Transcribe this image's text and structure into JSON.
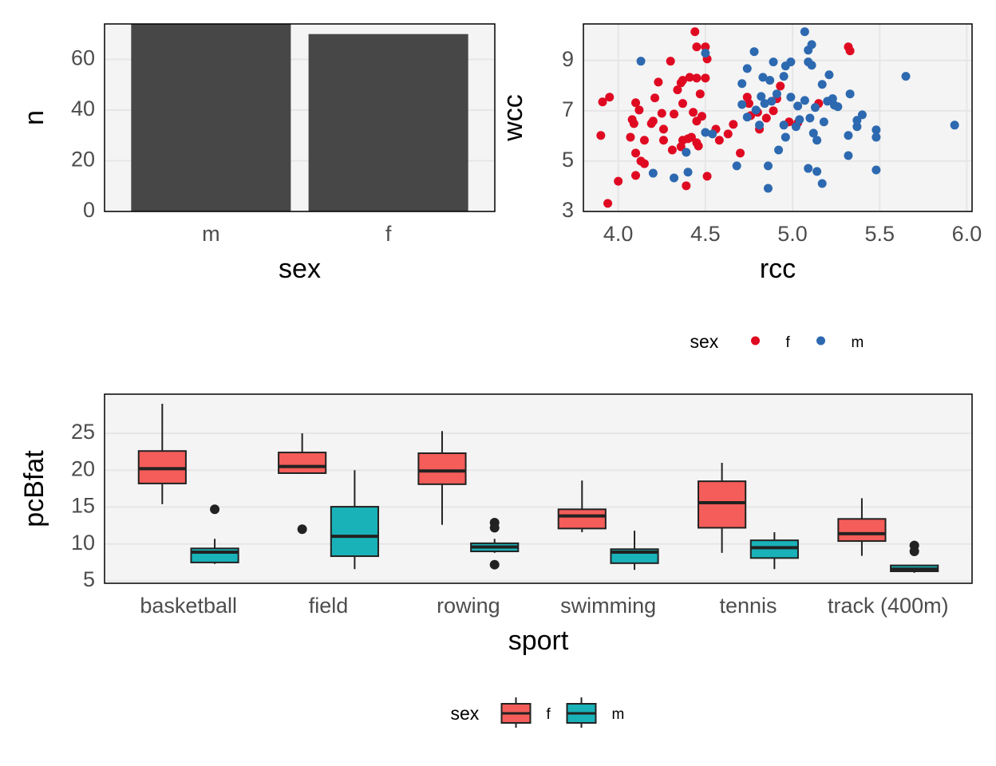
{
  "chart_data": [
    {
      "type": "bar",
      "x_label": "sex",
      "y_label": "n",
      "categories": [
        "m",
        "f"
      ],
      "values": [
        74,
        70
      ],
      "color": "#474747",
      "ylim": [
        0,
        74
      ],
      "yticks": [
        0,
        20,
        40,
        60
      ],
      "grid": true
    },
    {
      "type": "scatter",
      "x_label": "rcc",
      "y_label": "wcc",
      "legend_title": "sex",
      "legend": "bottom",
      "grid": true,
      "xlim": [
        3.8,
        6.03
      ],
      "xticks": [
        {
          "value": 4,
          "label": "4.0"
        },
        {
          "value": 4.5,
          "label": "4.5"
        },
        {
          "value": 5,
          "label": "5.0"
        },
        {
          "value": 5.5,
          "label": "5.5"
        },
        {
          "value": 6,
          "label": "6.0"
        }
      ],
      "ylim": [
        3,
        10.45
      ],
      "yticks": [
        3,
        5,
        7,
        9
      ],
      "series": [
        {
          "name": "f",
          "color": "#df0a22",
          "x": [
            3.9,
            3.91,
            3.95,
            3.94,
            4.0,
            4.07,
            4.08,
            4.09,
            4.1,
            4.1,
            4.12,
            4.13,
            4.15,
            4.1,
            4.15,
            4.19,
            4.2,
            4.21,
            4.23,
            4.25,
            4.26,
            4.26,
            4.3,
            4.31,
            4.32,
            4.34,
            4.36,
            4.36,
            4.37,
            4.37,
            4.37,
            4.39,
            4.4,
            4.41,
            4.42,
            4.43,
            4.44,
            4.45,
            4.45,
            4.45,
            4.45,
            4.46,
            4.47,
            4.48,
            4.5,
            4.5,
            4.51,
            4.51,
            4.56,
            4.58,
            4.63,
            4.66,
            4.7,
            4.74,
            4.75,
            4.76,
            4.8,
            4.81,
            4.85,
            4.89,
            4.91,
            4.93,
            4.98,
            5.03,
            5.15,
            5.32,
            5.33
          ],
          "y": [
            6.02,
            7.35,
            7.54,
            3.32,
            4.2,
            5.95,
            6.65,
            6.49,
            7.32,
            5.32,
            7.03,
            5.0,
            5.83,
            4.43,
            4.9,
            6.49,
            6.59,
            7.51,
            8.14,
            6.9,
            6.27,
            5.83,
            8.97,
            5.44,
            6.87,
            7.83,
            5.57,
            8.11,
            8.21,
            5.83,
            7.29,
            4.02,
            5.89,
            8.33,
            5.95,
            6.94,
            10.14,
            8.3,
            9.54,
            6.59,
            5.73,
            5.6,
            7.67,
            6.78,
            9.54,
            8.3,
            9.06,
            4.4,
            6.27,
            5.83,
            6.08,
            6.46,
            5.32,
            7.54,
            7.29,
            6.81,
            6.94,
            6.27,
            6.71,
            7.0,
            7.48,
            7.98,
            6.56,
            6.52,
            7.29,
            9.54,
            9.38
          ]
        },
        {
          "name": "m",
          "color": "#2d69b0",
          "x": [
            4.13,
            4.2,
            4.32,
            4.39,
            4.4,
            4.5,
            4.5,
            4.54,
            4.68,
            4.71,
            4.71,
            4.74,
            4.74,
            4.78,
            4.79,
            4.81,
            4.82,
            4.83,
            4.84,
            4.86,
            4.86,
            4.87,
            4.88,
            4.89,
            4.91,
            4.92,
            4.95,
            4.95,
            4.96,
            4.96,
            4.99,
            4.99,
            5.02,
            5.03,
            5.04,
            5.07,
            5.07,
            5.09,
            5.09,
            5.09,
            5.1,
            5.11,
            5.11,
            5.12,
            5.13,
            5.14,
            5.14,
            5.17,
            5.17,
            5.18,
            5.2,
            5.21,
            5.23,
            5.24,
            5.26,
            5.32,
            5.32,
            5.33,
            5.37,
            5.37,
            5.4,
            5.48,
            5.48,
            5.48,
            5.65,
            5.93
          ],
          "y": [
            8.97,
            4.52,
            4.33,
            5.35,
            4.56,
            9.29,
            6.14,
            6.08,
            4.81,
            8.08,
            7.25,
            6.75,
            8.68,
            9.35,
            7.03,
            6.43,
            7.57,
            8.33,
            7.29,
            4.81,
            3.92,
            8.21,
            7.38,
            8.94,
            7.67,
            5.44,
            8.37,
            6.43,
            8.78,
            5.95,
            8.94,
            7.54,
            6.37,
            7.19,
            6.65,
            7.41,
            10.14,
            9.41,
            4.71,
            8.94,
            6.71,
            9.63,
            8.81,
            6.11,
            7.13,
            4.59,
            5.83,
            4.11,
            8.05,
            6.56,
            7.38,
            8.43,
            7.48,
            7.22,
            7.16,
            6.02,
            5.22,
            7.67,
            6.37,
            6.62,
            6.84,
            6.24,
            5.95,
            4.65,
            8.37,
            6.43
          ]
        }
      ]
    },
    {
      "type": "boxplot",
      "x_label": "sport",
      "y_label": "pcBfat",
      "legend_title": "sex",
      "legend": "bottom",
      "grid": true,
      "categories": [
        "basketball",
        "field",
        "rowing",
        "swimming",
        "tennis",
        "track (400m)"
      ],
      "ylim": [
        4.68,
        30.3
      ],
      "yticks": [
        5,
        10,
        15,
        20,
        25
      ],
      "series": [
        {
          "name": "f",
          "color": "#f45d59",
          "boxes": [
            {
              "min": 15.4,
              "q1": 18.2,
              "median": 20.2,
              "q3": 22.6,
              "max": 29.0,
              "outliers": []
            },
            {
              "min": 19.5,
              "q1": 19.6,
              "median": 20.5,
              "q3": 22.4,
              "max": 25.0,
              "outliers": [
                12.0
              ]
            },
            {
              "min": 12.6,
              "q1": 18.1,
              "median": 19.9,
              "q3": 22.3,
              "max": 25.3,
              "outliers": []
            },
            {
              "min": 11.6,
              "q1": 12.1,
              "median": 13.8,
              "q3": 14.7,
              "max": 18.6,
              "outliers": []
            },
            {
              "min": 8.8,
              "q1": 12.2,
              "median": 15.6,
              "q3": 18.5,
              "max": 21.0,
              "outliers": []
            },
            {
              "min": 8.4,
              "q1": 10.4,
              "median": 11.4,
              "q3": 13.4,
              "max": 16.2,
              "outliers": []
            }
          ]
        },
        {
          "name": "m",
          "color": "#19b2b8",
          "boxes": [
            {
              "min": 7.3,
              "q1": 7.5,
              "median": 8.9,
              "q3": 9.4,
              "max": 10.7,
              "outliers": [
                14.7
              ]
            },
            {
              "min": 6.6,
              "q1": 8.35,
              "median": 11.05,
              "q3": 15.05,
              "max": 20.0,
              "outliers": []
            },
            {
              "min": 8.8,
              "q1": 9.0,
              "median": 9.6,
              "q3": 10.1,
              "max": 10.7,
              "outliers": [
                12.9,
                12.2,
                7.2
              ]
            },
            {
              "min": 6.5,
              "q1": 7.4,
              "median": 8.9,
              "q3": 9.3,
              "max": 11.8,
              "outliers": []
            },
            {
              "min": 6.6,
              "q1": 8.1,
              "median": 9.5,
              "q3": 10.5,
              "max": 11.6,
              "outliers": []
            },
            {
              "min": 6.1,
              "q1": 6.3,
              "median": 6.6,
              "q3": 7.1,
              "max": 7.2,
              "outliers": [
                9.8,
                9.0
              ]
            }
          ]
        }
      ]
    }
  ]
}
